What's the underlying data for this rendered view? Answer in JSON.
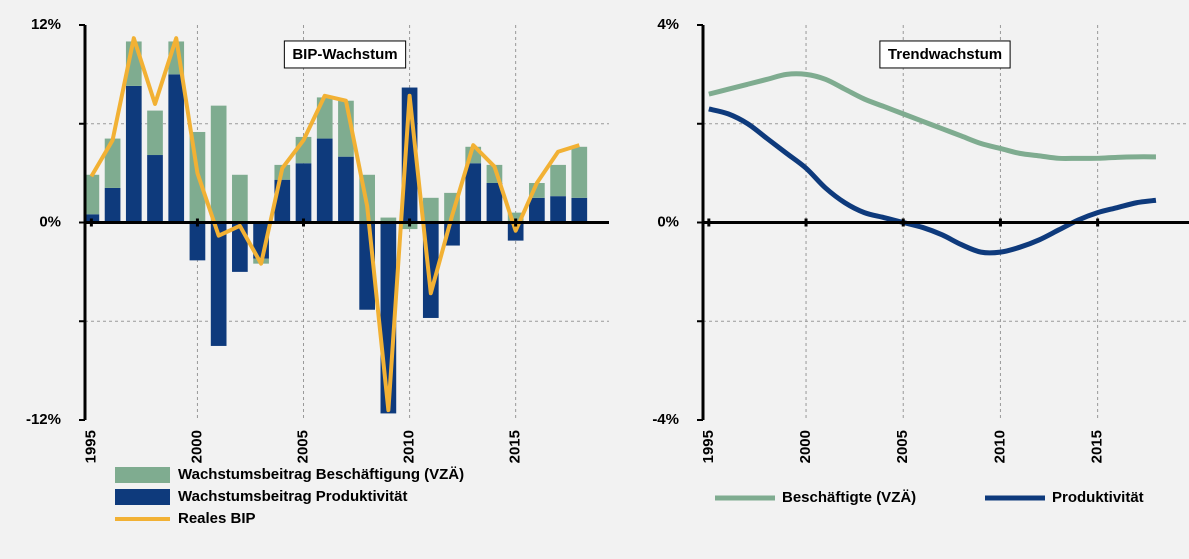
{
  "chart_data": [
    {
      "type": "combo",
      "title": "BIP-Wachstum",
      "x": [
        1995,
        1996,
        1997,
        1998,
        1999,
        2000,
        2001,
        2002,
        2003,
        2004,
        2005,
        2006,
        2007,
        2008,
        2009,
        2010,
        2011,
        2012,
        2013,
        2014,
        2015,
        2016,
        2017,
        2018
      ],
      "series": [
        {
          "name": "Wachstumsbeitrag Beschäftigung (VZÄ)",
          "kind": "bar",
          "color": "#7fac90",
          "values": [
            2.4,
            3.0,
            2.7,
            2.7,
            2.0,
            5.5,
            7.1,
            2.9,
            -0.3,
            0.9,
            1.6,
            2.5,
            3.4,
            2.9,
            0.3,
            -0.4,
            1.5,
            1.8,
            1.0,
            1.1,
            0.6,
            0.9,
            1.9,
            3.1
          ]
        },
        {
          "name": "Wachstumsbeitrag Produktivität",
          "kind": "bar",
          "color": "#0e3a7c",
          "values": [
            0.5,
            2.1,
            8.3,
            4.1,
            9.0,
            -2.3,
            -7.5,
            -3.0,
            -2.2,
            2.6,
            3.6,
            5.1,
            4.0,
            -5.3,
            -11.6,
            8.2,
            -5.8,
            -1.4,
            3.6,
            2.4,
            -1.1,
            1.5,
            1.6,
            1.5
          ]
        },
        {
          "name": "Reales BIP",
          "kind": "line",
          "color": "#f2b134",
          "values": [
            2.8,
            5.0,
            11.2,
            7.2,
            11.2,
            3.0,
            -0.8,
            -0.2,
            -2.5,
            3.3,
            5.0,
            7.7,
            7.4,
            1.0,
            -11.4,
            7.7,
            -4.3,
            0.4,
            4.7,
            3.4,
            -0.5,
            2.4,
            4.3,
            4.7
          ]
        }
      ],
      "xlim": [
        1994.7,
        2019.4
      ],
      "xticks": [
        1995,
        2000,
        2005,
        2010,
        2015
      ],
      "ylim": [
        -12,
        12
      ],
      "yticks": [
        {
          "value": -12,
          "label": "-12%"
        },
        {
          "value": 0,
          "label": "0%"
        },
        {
          "value": 12,
          "label": "12%"
        }
      ],
      "grid_y": [
        -6,
        6
      ],
      "grid": true
    },
    {
      "type": "line",
      "title": "Trendwachstum",
      "x": [
        1995,
        1996,
        1997,
        1998,
        1999,
        2000,
        2001,
        2002,
        2003,
        2004,
        2005,
        2006,
        2007,
        2008,
        2009,
        2010,
        2011,
        2012,
        2013,
        2014,
        2015,
        2016,
        2017,
        2018
      ],
      "series": [
        {
          "name": "Beschäftigte (VZÄ)",
          "color": "#7fac90",
          "values": [
            2.6,
            2.7,
            2.8,
            2.9,
            3.0,
            3.0,
            2.9,
            2.7,
            2.5,
            2.35,
            2.2,
            2.05,
            1.9,
            1.75,
            1.6,
            1.5,
            1.4,
            1.35,
            1.3,
            1.3,
            1.3,
            1.32,
            1.33,
            1.33
          ]
        },
        {
          "name": "Produktivität",
          "color": "#0e3a7c",
          "values": [
            2.3,
            2.2,
            2.0,
            1.7,
            1.4,
            1.1,
            0.7,
            0.4,
            0.2,
            0.1,
            0.0,
            -0.1,
            -0.25,
            -0.45,
            -0.6,
            -0.6,
            -0.5,
            -0.35,
            -0.15,
            0.05,
            0.2,
            0.3,
            0.4,
            0.45
          ]
        }
      ],
      "xlim": [
        1994.7,
        2019.7
      ],
      "xticks": [
        1995,
        2000,
        2005,
        2010,
        2015
      ],
      "ylim": [
        -4,
        4
      ],
      "yticks": [
        {
          "value": -4,
          "label": "-4%"
        },
        {
          "value": 0,
          "label": "0%"
        },
        {
          "value": 4,
          "label": "4%"
        }
      ],
      "grid_y": [
        -2,
        2
      ],
      "grid": true
    }
  ]
}
